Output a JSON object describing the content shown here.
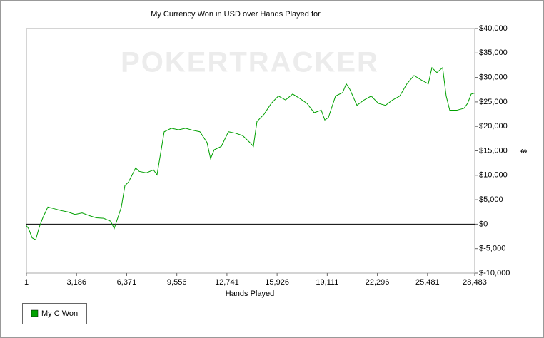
{
  "chart_data": {
    "type": "line",
    "title": "My Currency Won in USD over Hands Played for",
    "watermark": "POKERTRACKER",
    "x_label": "Hands Played",
    "y_label": "$",
    "x": [
      1,
      137,
      364,
      591,
      817,
      1044,
      1362,
      1724,
      2178,
      2631,
      3085,
      3538,
      3992,
      4445,
      4899,
      5352,
      5579,
      5806,
      6032,
      6259,
      6486,
      6940,
      7166,
      7620,
      8073,
      8300,
      8527,
      8754,
      9207,
      9661,
      10114,
      10568,
      11021,
      11475,
      11701,
      11928,
      12382,
      12835,
      13289,
      13742,
      14196,
      14422,
      14649,
      15102,
      15556,
      16010,
      16463,
      16917,
      17370,
      17824,
      18277,
      18731,
      18957,
      19184,
      19638,
      20091,
      20318,
      20545,
      20998,
      21452,
      21905,
      22359,
      22812,
      23266,
      23719,
      24173,
      24626,
      25080,
      25534,
      25760,
      26078,
      26441,
      26668,
      26894,
      27348,
      27801,
      28028,
      28255,
      28483
    ],
    "series": [
      {
        "name": "My C Won",
        "color": "#00a000",
        "values": [
          -300,
          -900,
          -2800,
          -3200,
          -600,
          1300,
          3500,
          3200,
          2800,
          2500,
          2000,
          2300,
          1750,
          1300,
          1200,
          600,
          -900,
          1300,
          3500,
          7900,
          8600,
          11500,
          10800,
          10500,
          11100,
          10100,
          14500,
          18900,
          19600,
          19300,
          19600,
          19200,
          18900,
          16700,
          13400,
          15200,
          15900,
          18900,
          18600,
          18100,
          16700,
          15900,
          21000,
          22500,
          24700,
          26200,
          25400,
          26600,
          25700,
          24700,
          22800,
          23300,
          21300,
          21800,
          26200,
          26900,
          28700,
          27600,
          24300,
          25400,
          26200,
          24700,
          24300,
          25400,
          26200,
          28700,
          30400,
          29500,
          28700,
          32000,
          31000,
          32000,
          26200,
          23300,
          23300,
          23700,
          24700,
          26600,
          26800
        ]
      }
    ],
    "xlim": [
      1,
      28483
    ],
    "xticks": [
      1,
      {
        "value": 3186,
        "label": "3,186"
      },
      {
        "value": 6371,
        "label": "6,371"
      },
      {
        "value": 9556,
        "label": "9,556"
      },
      {
        "value": 12741,
        "label": "12,741"
      },
      {
        "value": 15926,
        "label": "15,926"
      },
      {
        "value": 19111,
        "label": "19,111"
      },
      {
        "value": 22296,
        "label": "22,296"
      },
      {
        "value": 25481,
        "label": "25,481"
      },
      {
        "value": 28483,
        "label": "28,483"
      }
    ],
    "ylim": [
      -10000,
      40000
    ],
    "yticks": [
      {
        "value": -10000,
        "label": "$-10,000"
      },
      {
        "value": -5000,
        "label": "$-5,000"
      },
      {
        "value": 0,
        "label": "$0"
      },
      {
        "value": 5000,
        "label": "$5,000"
      },
      {
        "value": 10000,
        "label": "$10,000"
      },
      {
        "value": 15000,
        "label": "$15,000"
      },
      {
        "value": 20000,
        "label": "$20,000"
      },
      {
        "value": 25000,
        "label": "$25,000"
      },
      {
        "value": 30000,
        "label": "$30,000"
      },
      {
        "value": 35000,
        "label": "$35,000"
      },
      {
        "value": 40000,
        "label": "$40,000"
      }
    ],
    "grid": false,
    "legend": "bottom-left"
  }
}
